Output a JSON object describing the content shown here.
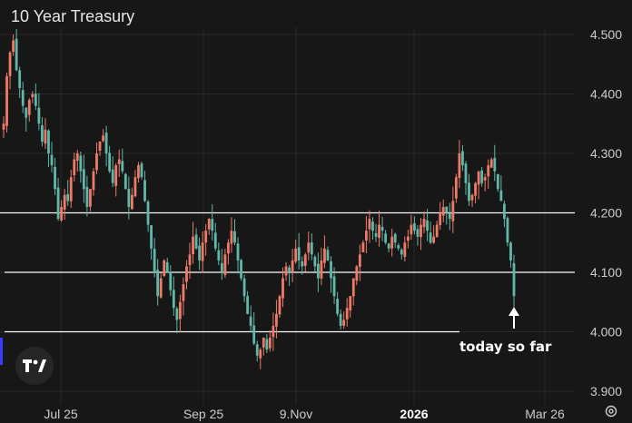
{
  "chart_data": {
    "type": "candlestick",
    "title": "10 Year Treasury",
    "x_tick_labels": [
      "Jul 25",
      "Sep 25",
      "9.Nov",
      "2026",
      "Mar 26"
    ],
    "x_tick_bold": [
      false,
      false,
      false,
      true,
      false
    ],
    "y_tick_labels": [
      "4.500",
      "4.400",
      "4.300",
      "4.200",
      "4.100",
      "4.000",
      "3.900"
    ],
    "ylim": [
      3.885,
      4.545
    ],
    "horizontal_lines": [
      4.2,
      4.1,
      4.0
    ],
    "annotation": "today so far",
    "colors": {
      "up": "#ef7a67",
      "down": "#5fb8a8",
      "line": "#ffffff",
      "grid": "#2a2a2a",
      "text": "#cccccc",
      "background": "#171717"
    },
    "closes": [
      4.35,
      4.43,
      4.47,
      4.49,
      4.44,
      4.41,
      4.38,
      4.36,
      4.39,
      4.4,
      4.38,
      4.35,
      4.32,
      4.34,
      4.3,
      4.28,
      4.24,
      4.19,
      4.21,
      4.23,
      4.22,
      4.26,
      4.29,
      4.3,
      4.27,
      4.24,
      4.21,
      4.24,
      4.27,
      4.3,
      4.32,
      4.33,
      4.3,
      4.27,
      4.25,
      4.28,
      4.29,
      4.27,
      4.24,
      4.21,
      4.23,
      4.26,
      4.28,
      4.26,
      4.22,
      4.18,
      4.14,
      4.1,
      4.06,
      4.09,
      4.12,
      4.1,
      4.07,
      4.04,
      4.02,
      4.05,
      4.08,
      4.11,
      4.13,
      4.16,
      4.14,
      4.12,
      4.15,
      4.17,
      4.19,
      4.17,
      4.14,
      4.12,
      4.1,
      4.13,
      4.15,
      4.17,
      4.15,
      4.12,
      4.09,
      4.06,
      4.03,
      4.01,
      3.98,
      3.96,
      3.97,
      3.99,
      3.97,
      3.99,
      4.01,
      4.03,
      4.06,
      4.09,
      4.11,
      4.1,
      4.12,
      4.14,
      4.12,
      4.11,
      4.13,
      4.15,
      4.13,
      4.11,
      4.09,
      4.12,
      4.14,
      4.12,
      4.09,
      4.06,
      4.03,
      4.01,
      4.02,
      4.04,
      4.06,
      4.09,
      4.11,
      4.13,
      4.15,
      4.17,
      4.19,
      4.17,
      4.16,
      4.18,
      4.17,
      4.15,
      4.14,
      4.16,
      4.15,
      4.14,
      4.13,
      4.15,
      4.16,
      4.18,
      4.17,
      4.16,
      4.18,
      4.19,
      4.17,
      4.15,
      4.16,
      4.18,
      4.2,
      4.21,
      4.2,
      4.19,
      4.22,
      4.26,
      4.3,
      4.28,
      4.25,
      4.22,
      4.23,
      4.25,
      4.27,
      4.25,
      4.26,
      4.28,
      4.29,
      4.27,
      4.24,
      4.22,
      4.19,
      4.15,
      4.12,
      4.06
    ]
  },
  "branding": {
    "logo_text": "TV"
  }
}
